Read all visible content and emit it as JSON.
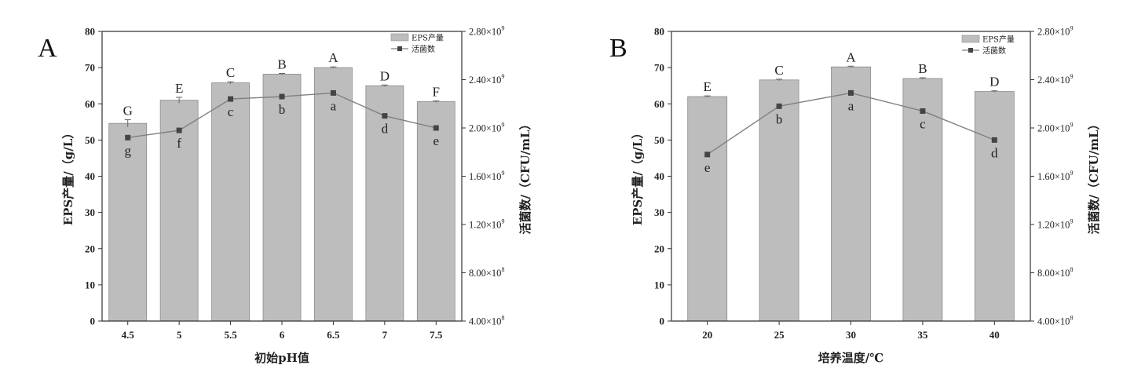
{
  "chart_data": [
    {
      "type": "bar+line",
      "panel_label": "A",
      "xlabel": "初始pH值",
      "ylabel": "EPS产量/（g/L）",
      "y2label": "活菌数/（CFU/mL）",
      "categories": [
        "4.5",
        "5",
        "5.5",
        "6",
        "6.5",
        "7",
        "7.5"
      ],
      "ylim": [
        0,
        80
      ],
      "y_ticks": [
        "0",
        "10",
        "20",
        "30",
        "40",
        "50",
        "60",
        "70",
        "80"
      ],
      "y2lim": [
        400000000,
        2800000000
      ],
      "y2_ticks": [
        {
          "m": "4.00×10",
          "e": "8"
        },
        {
          "m": "8.00×10",
          "e": "8"
        },
        {
          "m": "1.20×10",
          "e": "9"
        },
        {
          "m": "1.60×10",
          "e": "9"
        },
        {
          "m": "2.00×10",
          "e": "9"
        },
        {
          "m": "2.40×10",
          "e": "9"
        },
        {
          "m": "2.80×10",
          "e": "9"
        }
      ],
      "legend": {
        "bar": "EPS产量",
        "line": "活菌数",
        "position": "top-right"
      },
      "series": [
        {
          "name": "EPS产量",
          "kind": "bar",
          "values": [
            54.6,
            61.0,
            65.8,
            68.2,
            70.0,
            65.0,
            60.6
          ],
          "errors": [
            1.0,
            0.8,
            0.3,
            0.2,
            0.2,
            0.2,
            0.2
          ],
          "letters": [
            "G",
            "E",
            "C",
            "B",
            "A",
            "D",
            "F"
          ]
        },
        {
          "name": "活菌数",
          "kind": "line",
          "values": [
            1920000000,
            1980000000,
            2240000000,
            2260000000,
            2290000000,
            2100000000,
            2000000000
          ],
          "letters": [
            "g",
            "f",
            "c",
            "b",
            "a",
            "d",
            "e"
          ]
        }
      ]
    },
    {
      "type": "bar+line",
      "panel_label": "B",
      "xlabel": "培养温度/℃",
      "ylabel": "EPS产量/（g/L）",
      "y2label": "活菌数/（CFU/mL）",
      "categories": [
        "20",
        "25",
        "30",
        "35",
        "40"
      ],
      "ylim": [
        0,
        80
      ],
      "y_ticks": [
        "0",
        "10",
        "20",
        "30",
        "40",
        "50",
        "60",
        "70",
        "80"
      ],
      "y2lim": [
        400000000,
        2800000000
      ],
      "y2_ticks": [
        {
          "m": "4.00×10",
          "e": "8"
        },
        {
          "m": "8.00×10",
          "e": "8"
        },
        {
          "m": "1.20×10",
          "e": "9"
        },
        {
          "m": "1.60×10",
          "e": "9"
        },
        {
          "m": "2.00×10",
          "e": "9"
        },
        {
          "m": "2.40×10",
          "e": "9"
        },
        {
          "m": "2.80×10",
          "e": "9"
        }
      ],
      "legend": {
        "bar": "EPS产量",
        "line": "活菌数",
        "position": "top-right"
      },
      "series": [
        {
          "name": "EPS产量",
          "kind": "bar",
          "values": [
            62.0,
            66.6,
            70.2,
            67.0,
            63.4
          ],
          "errors": [
            0.2,
            0.2,
            0.2,
            0.2,
            0.2
          ],
          "letters": [
            "E",
            "C",
            "A",
            "B",
            "D"
          ]
        },
        {
          "name": "活菌数",
          "kind": "line",
          "values": [
            1780000000,
            2180000000,
            2290000000,
            2140000000,
            1900000000
          ],
          "letters": [
            "e",
            "b",
            "a",
            "c",
            "d"
          ]
        }
      ]
    }
  ],
  "colors": {
    "bar_fill": "#bdbdbd",
    "bar_stroke": "#8a8a8a",
    "line": "#7f7f7f",
    "marker": "#444444",
    "axis": "#333333"
  }
}
